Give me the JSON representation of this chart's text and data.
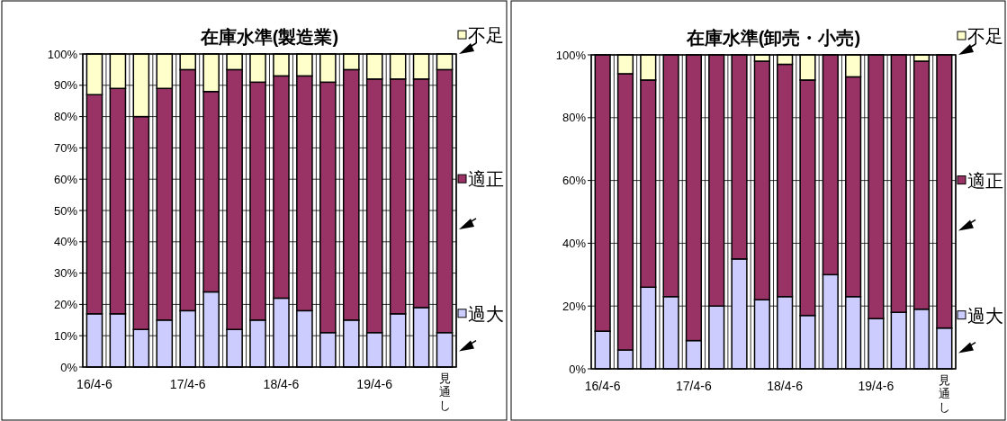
{
  "chart_data": [
    {
      "type": "bar",
      "stacked": true,
      "legend": "right",
      "title": "在庫水準(製造業)",
      "categories": [
        "16/4-6",
        null,
        null,
        null,
        "17/4-6",
        null,
        null,
        null,
        "18/4-6",
        null,
        null,
        null,
        "19/4-6",
        null,
        null,
        "見通し"
      ],
      "ylim": [
        0,
        100
      ],
      "yticks": [
        {
          "value": 0,
          "label": "0%"
        },
        {
          "value": 10,
          "label": "10%"
        },
        {
          "value": 20,
          "label": "20%"
        },
        {
          "value": 30,
          "label": "30%"
        },
        {
          "value": 40,
          "label": "40%"
        },
        {
          "value": 50,
          "label": "50%"
        },
        {
          "value": 60,
          "label": "60%"
        },
        {
          "value": 70,
          "label": "70%"
        },
        {
          "value": 80,
          "label": "80%"
        },
        {
          "value": 90,
          "label": "90%"
        },
        {
          "value": 100,
          "label": "100%"
        }
      ],
      "grid": true,
      "series": [
        {
          "name": "過大",
          "color": "#ccccff",
          "values": [
            17,
            17,
            12,
            15,
            18,
            24,
            12,
            15,
            22,
            18,
            11,
            15,
            11,
            17,
            19,
            11
          ]
        },
        {
          "name": "適正",
          "color": "#993366",
          "values": [
            70,
            72,
            68,
            74,
            77,
            64,
            83,
            76,
            71,
            75,
            80,
            80,
            81,
            75,
            73,
            84
          ]
        },
        {
          "name": "不足",
          "color": "#ffffcc",
          "values": [
            13,
            11,
            20,
            11,
            5,
            12,
            5,
            9,
            7,
            7,
            9,
            5,
            8,
            8,
            8,
            5
          ]
        }
      ]
    },
    {
      "type": "bar",
      "stacked": true,
      "legend": "right",
      "title": "在庫水準(卸売・小売)",
      "categories": [
        "16/4-6",
        null,
        null,
        null,
        "17/4-6",
        null,
        null,
        null,
        "18/4-6",
        null,
        null,
        null,
        "19/4-6",
        null,
        null,
        "見通し"
      ],
      "ylim": [
        0,
        100
      ],
      "yticks": [
        {
          "value": 0,
          "label": "0%"
        },
        {
          "value": 20,
          "label": "20%"
        },
        {
          "value": 40,
          "label": "40%"
        },
        {
          "value": 60,
          "label": "60%"
        },
        {
          "value": 80,
          "label": "80%"
        },
        {
          "value": 100,
          "label": "100%"
        }
      ],
      "grid": true,
      "series": [
        {
          "name": "過大",
          "color": "#ccccff",
          "values": [
            12,
            6,
            26,
            23,
            9,
            20,
            35,
            22,
            23,
            17,
            30,
            23,
            16,
            18,
            19,
            13
          ]
        },
        {
          "name": "適正",
          "color": "#993366",
          "values": [
            88,
            88,
            66,
            77,
            91,
            80,
            65,
            76,
            74,
            75,
            70,
            70,
            84,
            82,
            79,
            87
          ]
        },
        {
          "name": "不足",
          "color": "#ffffcc",
          "values": [
            0,
            6,
            8,
            0,
            0,
            0,
            0,
            2,
            3,
            8,
            0,
            7,
            0,
            0,
            2,
            0
          ]
        }
      ]
    }
  ]
}
